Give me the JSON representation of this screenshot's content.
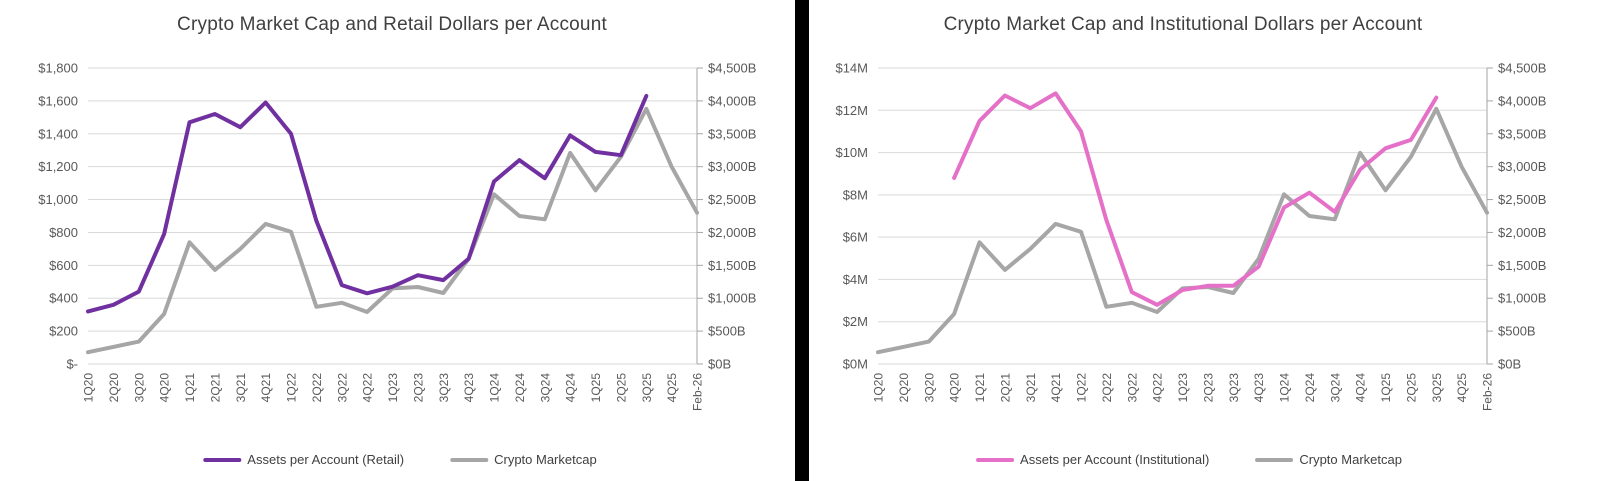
{
  "divider_color": "#000000",
  "chart_data": [
    {
      "type": "line",
      "title": "Crypto Market Cap and Retail Dollars per Account",
      "grid": true,
      "legend_position": "bottom",
      "x_labels_rotated_90": true,
      "categories": [
        "1Q20",
        "2Q20",
        "3Q20",
        "4Q20",
        "1Q21",
        "2Q21",
        "3Q21",
        "4Q21",
        "1Q22",
        "2Q22",
        "3Q22",
        "4Q22",
        "1Q23",
        "2Q23",
        "3Q23",
        "4Q23",
        "1Q24",
        "2Q24",
        "3Q24",
        "4Q24",
        "1Q25",
        "2Q25",
        "3Q25",
        "4Q25",
        "Feb-26"
      ],
      "left_axis": {
        "max": 1800,
        "min": 0,
        "labels": [
          "$1,800",
          "$1,600",
          "$1,400",
          "$1,200",
          "$1,000",
          "$800",
          "$600",
          "$400",
          "$200",
          "$-"
        ]
      },
      "right_axis": {
        "max": 4500,
        "min": 0,
        "labels": [
          "$4,500B",
          "$4,000B",
          "$3,500B",
          "$3,000B",
          "$2,500B",
          "$2,000B",
          "$1,500B",
          "$1,000B",
          "$500B",
          "$0B"
        ]
      },
      "series": [
        {
          "name": "Assets per Account (Retail)",
          "axis": "left",
          "color": "#7030A0",
          "start_index": 0,
          "values": [
            320,
            360,
            440,
            790,
            1470,
            1520,
            1440,
            1590,
            1400,
            870,
            480,
            430,
            470,
            540,
            510,
            640,
            1110,
            1240,
            1130,
            1390,
            1290,
            1270,
            1630
          ]
        },
        {
          "name": "Crypto Marketcap",
          "axis": "right",
          "color": "#A6A6A6",
          "start_index": 0,
          "values": [
            180,
            260,
            340,
            760,
            1850,
            1430,
            1750,
            2130,
            2010,
            870,
            930,
            790,
            1150,
            1170,
            1080,
            1600,
            2580,
            2250,
            2200,
            3210,
            2640,
            3150,
            3880,
            3000,
            2300
          ]
        }
      ]
    },
    {
      "type": "line",
      "title": "Crypto Market Cap and Institutional Dollars per Account",
      "grid": true,
      "legend_position": "bottom",
      "x_labels_rotated_90": true,
      "categories": [
        "1Q20",
        "2Q20",
        "3Q20",
        "4Q20",
        "1Q21",
        "2Q21",
        "3Q21",
        "4Q21",
        "1Q22",
        "2Q22",
        "3Q22",
        "4Q22",
        "1Q23",
        "2Q23",
        "3Q23",
        "4Q23",
        "1Q24",
        "2Q24",
        "3Q24",
        "4Q24",
        "1Q25",
        "2Q25",
        "3Q25",
        "4Q25",
        "Feb-26"
      ],
      "left_axis": {
        "max": 14,
        "min": 0,
        "labels": [
          "$14M",
          "$12M",
          "$10M",
          "$8M",
          "$6M",
          "$4M",
          "$2M",
          "$0M"
        ]
      },
      "right_axis": {
        "max": 4500,
        "min": 0,
        "labels": [
          "$4,500B",
          "$4,000B",
          "$3,500B",
          "$3,000B",
          "$2,500B",
          "$2,000B",
          "$1,500B",
          "$1,000B",
          "$500B",
          "$0B"
        ]
      },
      "series": [
        {
          "name": "Assets per Account (Institutional)",
          "axis": "left",
          "color": "#E570C8",
          "start_index": 3,
          "values": [
            8.8,
            11.5,
            12.7,
            12.1,
            12.8,
            11.0,
            6.8,
            3.4,
            2.8,
            3.5,
            3.7,
            3.7,
            4.6,
            7.4,
            8.1,
            7.2,
            9.2,
            10.2,
            10.6,
            12.6
          ]
        },
        {
          "name": "Crypto Marketcap",
          "axis": "right",
          "color": "#A6A6A6",
          "start_index": 0,
          "values": [
            180,
            260,
            340,
            760,
            1850,
            1430,
            1750,
            2130,
            2010,
            870,
            930,
            790,
            1150,
            1170,
            1080,
            1600,
            2580,
            2250,
            2200,
            3210,
            2640,
            3150,
            3880,
            3000,
            2300
          ]
        }
      ]
    }
  ]
}
